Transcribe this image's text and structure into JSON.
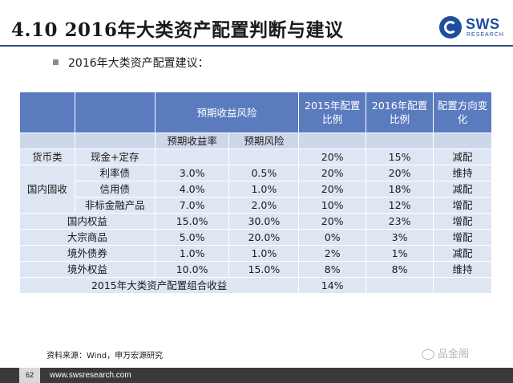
{
  "header": {
    "title": "4.10  2016年大类资产配置判断与建议",
    "logo_text": "SWS",
    "logo_sub": "RESEARCH"
  },
  "bullet": "2016年大类资产配置建议：",
  "table": {
    "header": {
      "expected": "预期收益风险",
      "alloc2015": [
        "2015年配置",
        "比例"
      ],
      "alloc2016": [
        "2016年配置",
        "比例"
      ],
      "direction": [
        "配置方向变",
        "化"
      ]
    },
    "subheader": {
      "return": "预期收益率",
      "risk": "预期风险"
    },
    "rows": [
      {
        "cat": "货币类",
        "item": "现金+定存",
        "ret": "",
        "risk": "",
        "a2015": "20%",
        "a2016": "15%",
        "dir": "减配"
      },
      {
        "cat": "",
        "item": "利率债",
        "ret": "3.0%",
        "risk": "0.5%",
        "a2015": "20%",
        "a2016": "20%",
        "dir": "维持"
      },
      {
        "cat": "国内固收",
        "item": "信用债",
        "ret": "4.0%",
        "risk": "1.0%",
        "a2015": "20%",
        "a2016": "18%",
        "dir": "减配"
      },
      {
        "cat": "",
        "item": "非标金融产品",
        "ret": "7.0%",
        "risk": "2.0%",
        "a2015": "10%",
        "a2016": "12%",
        "dir": "增配"
      },
      {
        "cat": "国内权益",
        "item": "",
        "ret": "15.0%",
        "risk": "30.0%",
        "a2015": "20%",
        "a2016": "23%",
        "dir": "增配"
      },
      {
        "cat": "大宗商品",
        "item": "",
        "ret": "5.0%",
        "risk": "20.0%",
        "a2015": "0%",
        "a2016": "3%",
        "dir": "增配"
      },
      {
        "cat": "境外债券",
        "item": "",
        "ret": "1.0%",
        "risk": "1.0%",
        "a2015": "2%",
        "a2016": "1%",
        "dir": "减配"
      },
      {
        "cat": "境外权益",
        "item": "",
        "ret": "10.0%",
        "risk": "15.0%",
        "a2015": "8%",
        "a2016": "8%",
        "dir": "维持"
      }
    ],
    "total": {
      "label": "2015年大类资产配置组合收益",
      "value": "14%"
    }
  },
  "source": "资料来源：Wind，申万宏源研究",
  "watermark": "品金阁",
  "footer": {
    "page": "62",
    "url": "www.swsresearch.com"
  }
}
